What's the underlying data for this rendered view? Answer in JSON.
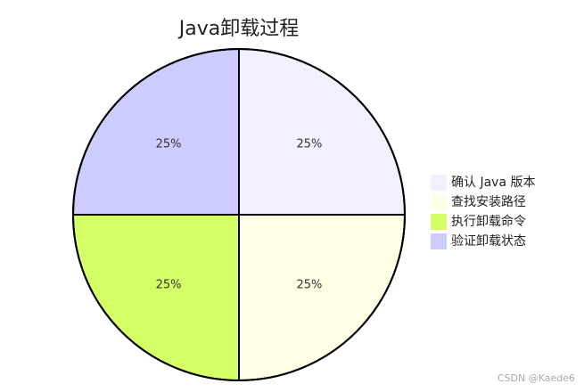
{
  "chart_data": {
    "type": "pie",
    "title": "Java卸载过程",
    "categories": [
      "确认 Java 版本",
      "查找安装路径",
      "执行卸载命令",
      "验证卸载状态"
    ],
    "values": [
      25,
      25,
      25,
      25
    ],
    "value_labels": [
      "25%",
      "25%",
      "25%",
      "25%"
    ],
    "colors": [
      "#f0f0ff",
      "#ffffe6",
      "#d4ff66",
      "#ccccff"
    ],
    "legend": "right"
  },
  "watermark": "CSDN @Kaede6"
}
